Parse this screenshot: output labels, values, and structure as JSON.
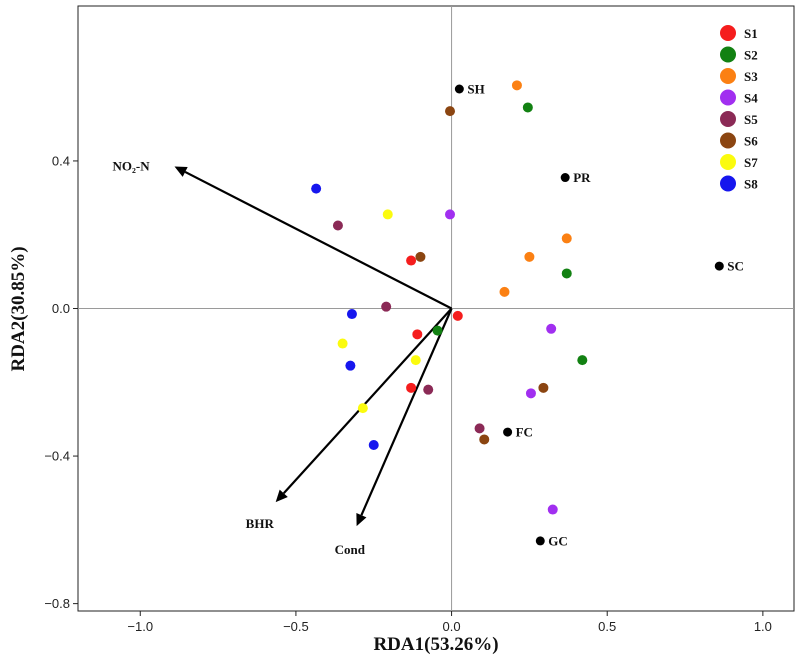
{
  "chart_data": {
    "type": "scatter",
    "xlabel": "RDA1(53.26%)",
    "ylabel": "RDA2(30.85%)",
    "xlim": [
      -1.2,
      1.1
    ],
    "ylim": [
      -0.82,
      0.82
    ],
    "xticks": [
      -1.0,
      -0.5,
      0.0,
      0.5,
      1.0
    ],
    "xtick_labels": [
      "−1.0",
      "−0.5",
      "0.0",
      "0.5",
      "1.0"
    ],
    "yticks": [
      -0.8,
      -0.4,
      0.0,
      0.4
    ],
    "ytick_labels": [
      "−0.8",
      "−0.4",
      "0.0",
      "0.4"
    ],
    "zero_lines": true,
    "legend_position": "top-right",
    "series": [
      {
        "name": "S1",
        "color": "#f51d1d",
        "points": [
          [
            -0.13,
            0.13
          ],
          [
            -0.11,
            -0.07
          ],
          [
            0.02,
            -0.02
          ],
          [
            -0.13,
            -0.215
          ]
        ]
      },
      {
        "name": "S2",
        "color": "#128112",
        "points": [
          [
            0.245,
            0.545
          ],
          [
            0.37,
            0.095
          ],
          [
            -0.045,
            -0.06
          ],
          [
            0.42,
            -0.14
          ]
        ]
      },
      {
        "name": "S3",
        "color": "#fb8013",
        "points": [
          [
            0.21,
            0.605
          ],
          [
            0.37,
            0.19
          ],
          [
            0.25,
            0.14
          ],
          [
            0.17,
            0.045
          ]
        ]
      },
      {
        "name": "S4",
        "color": "#a12ff0",
        "points": [
          [
            -0.005,
            0.255
          ],
          [
            0.32,
            -0.055
          ],
          [
            0.255,
            -0.23
          ],
          [
            0.325,
            -0.545
          ]
        ]
      },
      {
        "name": "S5",
        "color": "#8b2a56",
        "points": [
          [
            -0.365,
            0.225
          ],
          [
            -0.21,
            0.005
          ],
          [
            -0.075,
            -0.22
          ],
          [
            0.09,
            -0.325
          ]
        ]
      },
      {
        "name": "S6",
        "color": "#8b4511",
        "points": [
          [
            -0.005,
            0.535
          ],
          [
            -0.1,
            0.14
          ],
          [
            0.295,
            -0.215
          ],
          [
            0.105,
            -0.355
          ]
        ]
      },
      {
        "name": "S7",
        "color": "#fbfb0e",
        "points": [
          [
            -0.205,
            0.255
          ],
          [
            -0.35,
            -0.095
          ],
          [
            -0.115,
            -0.14
          ],
          [
            -0.285,
            -0.27
          ]
        ]
      },
      {
        "name": "S8",
        "color": "#1616ee",
        "points": [
          [
            -0.435,
            0.325
          ],
          [
            -0.32,
            -0.015
          ],
          [
            -0.325,
            -0.155
          ],
          [
            -0.25,
            -0.37
          ]
        ]
      }
    ],
    "vectors": [
      {
        "label": "NO₂-N",
        "x": -0.89,
        "y": 0.385
      },
      {
        "label": "BHR",
        "x": -0.565,
        "y": -0.525
      },
      {
        "label": "Cond",
        "x": -0.305,
        "y": -0.59
      }
    ],
    "sites": [
      {
        "label": "SH",
        "x": 0.025,
        "y": 0.595
      },
      {
        "label": "PR",
        "x": 0.365,
        "y": 0.355
      },
      {
        "label": "SC",
        "x": 0.86,
        "y": 0.115
      },
      {
        "label": "FC",
        "x": 0.18,
        "y": -0.335
      },
      {
        "label": "GC",
        "x": 0.285,
        "y": -0.63
      }
    ]
  }
}
